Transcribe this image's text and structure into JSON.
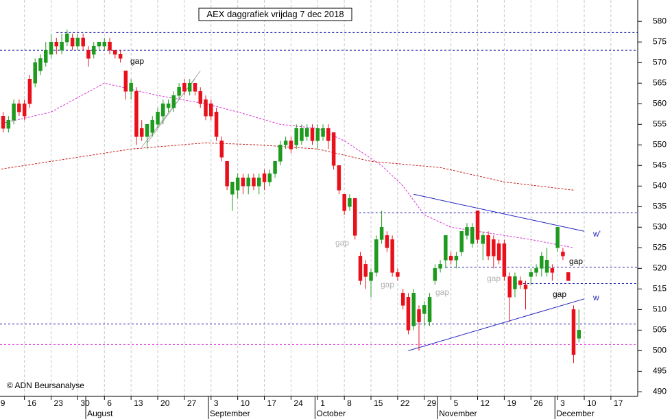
{
  "chart_data": {
    "type": "candlestick",
    "title": "AEX daggrafiek vrijdag 7 dec 2018",
    "copyright": "© ADN Beursanalyse",
    "up_color": "#1e9a1e",
    "down_color": "#e8101a",
    "grid": true,
    "x": [
      "2018-07-09",
      "2018-07-10",
      "2018-07-11",
      "2018-07-12",
      "2018-07-13",
      "2018-07-16",
      "2018-07-17",
      "2018-07-18",
      "2018-07-19",
      "2018-07-20",
      "2018-07-23",
      "2018-07-24",
      "2018-07-25",
      "2018-07-26",
      "2018-07-27",
      "2018-07-30",
      "2018-07-31",
      "2018-08-01",
      "2018-08-02",
      "2018-08-03",
      "2018-08-06",
      "2018-08-07",
      "2018-08-08",
      "2018-08-09",
      "2018-08-10",
      "2018-08-13",
      "2018-08-14",
      "2018-08-15",
      "2018-08-16",
      "2018-08-17",
      "2018-08-20",
      "2018-08-21",
      "2018-08-22",
      "2018-08-23",
      "2018-08-24",
      "2018-08-27",
      "2018-08-28",
      "2018-08-29",
      "2018-08-30",
      "2018-08-31",
      "2018-09-03",
      "2018-09-04",
      "2018-09-05",
      "2018-09-06",
      "2018-09-07",
      "2018-09-10",
      "2018-09-11",
      "2018-09-12",
      "2018-09-13",
      "2018-09-14",
      "2018-09-17",
      "2018-09-18",
      "2018-09-19",
      "2018-09-20",
      "2018-09-21",
      "2018-09-24",
      "2018-09-25",
      "2018-09-26",
      "2018-09-27",
      "2018-09-28",
      "2018-10-01",
      "2018-10-02",
      "2018-10-03",
      "2018-10-04",
      "2018-10-05",
      "2018-10-08",
      "2018-10-09",
      "2018-10-10",
      "2018-10-11",
      "2018-10-12",
      "2018-10-15",
      "2018-10-16",
      "2018-10-17",
      "2018-10-18",
      "2018-10-19",
      "2018-10-22",
      "2018-10-23",
      "2018-10-24",
      "2018-10-25",
      "2018-10-26",
      "2018-10-29",
      "2018-10-30",
      "2018-10-31",
      "2018-11-01",
      "2018-11-02",
      "2018-11-05",
      "2018-11-06",
      "2018-11-07",
      "2018-11-08",
      "2018-11-09",
      "2018-11-12",
      "2018-11-13",
      "2018-11-14",
      "2018-11-15",
      "2018-11-16",
      "2018-11-19",
      "2018-11-20",
      "2018-11-21",
      "2018-11-22",
      "2018-11-23",
      "2018-11-26",
      "2018-11-27",
      "2018-11-28",
      "2018-11-29",
      "2018-11-30",
      "2018-12-03",
      "2018-12-04",
      "2018-12-05",
      "2018-12-06",
      "2018-12-07"
    ],
    "open": [
      557,
      557,
      554,
      556,
      560,
      560,
      566,
      565,
      568,
      570,
      572,
      575,
      573,
      575,
      576,
      574,
      576,
      573,
      572,
      574,
      574,
      575,
      573,
      572,
      568,
      563,
      563,
      554,
      552,
      553,
      555,
      557,
      559,
      559,
      562,
      565,
      563,
      565,
      563,
      561,
      560,
      558,
      551,
      546,
      538,
      539,
      542,
      540,
      542,
      540,
      543,
      541,
      543,
      546,
      550,
      551,
      550,
      551,
      552,
      554,
      551,
      552,
      554,
      553,
      545,
      538,
      535,
      537,
      523,
      521,
      517,
      519,
      527,
      528,
      527,
      519,
      514,
      513,
      506,
      510,
      509,
      507,
      517,
      520,
      522,
      523,
      522,
      524,
      528,
      526,
      534,
      526,
      528,
      527,
      526,
      526,
      518,
      515,
      517,
      516,
      518,
      519,
      520,
      519,
      520,
      525,
      524,
      519,
      510,
      503
    ],
    "high": [
      561,
      558,
      557,
      561,
      561,
      561,
      567,
      571,
      572,
      575,
      577,
      576,
      577,
      578,
      577,
      577,
      577,
      574,
      575,
      575,
      576,
      576,
      573,
      573,
      568,
      566,
      564,
      556,
      555,
      557,
      559,
      561,
      561,
      563,
      565,
      566,
      566,
      565,
      564,
      562,
      561,
      559,
      552,
      546,
      541,
      543,
      543,
      543,
      543,
      543,
      544,
      544,
      546,
      551,
      552,
      552,
      555,
      555,
      555,
      555,
      555,
      555,
      555,
      553,
      545,
      538,
      538,
      537,
      524,
      522,
      520,
      528,
      534,
      529,
      528,
      520,
      515,
      514,
      515,
      511,
      512,
      514,
      521,
      522,
      528,
      524,
      524,
      529,
      531,
      531,
      534,
      529,
      529,
      528,
      527,
      527,
      519,
      519,
      518,
      517,
      520,
      521,
      524,
      525,
      521,
      530,
      525,
      519,
      511,
      510
    ],
    "low": [
      556,
      553,
      553,
      555,
      557,
      556,
      559,
      564,
      567,
      569,
      571,
      572,
      572,
      574,
      573,
      573,
      573,
      569,
      571,
      573,
      573,
      572,
      571,
      570,
      561,
      561,
      550,
      551,
      549,
      552,
      554,
      555,
      558,
      558,
      561,
      562,
      562,
      562,
      559,
      556,
      556,
      551,
      546,
      539,
      534,
      537,
      538,
      538,
      539,
      538,
      539,
      540,
      542,
      545,
      549,
      548,
      549,
      550,
      551,
      550,
      549,
      551,
      549,
      544,
      538,
      533,
      534,
      527,
      516,
      515,
      513,
      518,
      526,
      524,
      518,
      517,
      510,
      504,
      505,
      500,
      506,
      506,
      516,
      519,
      520,
      521,
      520,
      523,
      527,
      525,
      526,
      522,
      522,
      520,
      521,
      517,
      507,
      513,
      515,
      510,
      516,
      518,
      518,
      518,
      517,
      524,
      522,
      517,
      497,
      502
    ],
    "close": [
      560,
      554,
      556,
      560,
      558,
      557,
      560,
      570,
      571,
      573,
      575,
      574,
      575,
      577,
      574,
      576,
      574,
      571,
      574,
      575,
      575,
      573,
      572,
      571,
      563,
      565,
      552,
      552,
      555,
      556,
      558,
      560,
      560,
      562,
      564,
      563,
      565,
      563,
      560,
      557,
      557,
      552,
      547,
      540,
      541,
      542,
      540,
      542,
      540,
      542,
      541,
      543,
      546,
      550,
      551,
      549,
      554,
      554,
      554,
      551,
      554,
      554,
      551,
      545,
      539,
      534,
      537,
      528,
      517,
      518,
      519,
      527,
      530,
      525,
      519,
      518,
      511,
      505,
      514,
      507,
      511,
      513,
      520,
      521,
      528,
      522,
      523,
      529,
      530,
      530,
      527,
      528,
      523,
      523,
      522,
      518,
      513,
      518,
      516,
      515,
      519,
      520,
      523,
      522,
      519,
      530,
      523,
      517,
      499,
      505
    ],
    "xlim": [
      "2018-07-06",
      "2018-12-21"
    ],
    "ylim": [
      488.9,
      585.2
    ],
    "yticks": [
      490,
      495,
      500,
      505,
      510,
      515,
      520,
      525,
      530,
      535,
      540,
      545,
      550,
      555,
      560,
      565,
      570,
      575,
      580
    ],
    "xticks": [
      {
        "value": "2018-07-09",
        "label": "9"
      },
      {
        "value": "2018-07-16",
        "label": "16"
      },
      {
        "value": "2018-07-23",
        "label": "23"
      },
      {
        "value": "2018-07-30",
        "label": "30"
      },
      {
        "value": "2018-08-06",
        "label": "6"
      },
      {
        "value": "2018-08-13",
        "label": "13"
      },
      {
        "value": "2018-08-20",
        "label": "20"
      },
      {
        "value": "2018-08-27",
        "label": "27"
      },
      {
        "value": "2018-09-03",
        "label": "3"
      },
      {
        "value": "2018-09-10",
        "label": "10"
      },
      {
        "value": "2018-09-17",
        "label": "17"
      },
      {
        "value": "2018-09-24",
        "label": "24"
      },
      {
        "value": "2018-10-01",
        "label": "1"
      },
      {
        "value": "2018-10-08",
        "label": "8"
      },
      {
        "value": "2018-10-15",
        "label": "15"
      },
      {
        "value": "2018-10-22",
        "label": "22"
      },
      {
        "value": "2018-10-29",
        "label": "29"
      },
      {
        "value": "2018-11-05",
        "label": "5"
      },
      {
        "value": "2018-11-12",
        "label": "12"
      },
      {
        "value": "2018-11-19",
        "label": "19"
      },
      {
        "value": "2018-11-26",
        "label": "26"
      },
      {
        "value": "2018-12-03",
        "label": "3"
      },
      {
        "value": "2018-12-10",
        "label": "10"
      },
      {
        "value": "2018-12-17",
        "label": "17"
      }
    ],
    "month_ticks": [
      {
        "value": "2018-08-01",
        "label": "August"
      },
      {
        "value": "2018-09-03",
        "label": "September"
      },
      {
        "value": "2018-10-01",
        "label": "October"
      },
      {
        "value": "2018-11-01",
        "label": "November"
      },
      {
        "value": "2018-12-03",
        "label": "December"
      }
    ],
    "moving_averages": [
      {
        "color": "#d633d6",
        "x": [
          "2018-07-09",
          "2018-07-23",
          "2018-08-06",
          "2018-08-20",
          "2018-08-31",
          "2018-09-10",
          "2018-09-20",
          "2018-10-01",
          "2018-10-08",
          "2018-10-17",
          "2018-10-23",
          "2018-10-29",
          "2018-11-05",
          "2018-11-12",
          "2018-11-19",
          "2018-11-26",
          "2018-12-06"
        ],
        "values": [
          555,
          558,
          565,
          562,
          560,
          558,
          555,
          554,
          551,
          545,
          540,
          533,
          530,
          529,
          528,
          527,
          525
        ]
      },
      {
        "color": "#c82020",
        "x": [
          "2018-07-09",
          "2018-07-23",
          "2018-08-13",
          "2018-08-31",
          "2018-09-14",
          "2018-10-01",
          "2018-10-15",
          "2018-11-01",
          "2018-11-19",
          "2018-12-06"
        ],
        "values": [
          544,
          546,
          549,
          550.5,
          550,
          549,
          546,
          544.5,
          541,
          539
        ]
      }
    ],
    "hlines": [
      {
        "value": 577.3,
        "color": "#1a1aa8",
        "from": "2018-07-24"
      },
      {
        "value": 573,
        "color": "#1a1aa8"
      },
      {
        "value": 533.5,
        "color": "#1a1aa8",
        "from": "2018-10-10"
      },
      {
        "value": 520.3,
        "color": "#1a1aa8",
        "from": "2018-11-02"
      },
      {
        "value": 516.3,
        "color": "#1a1aa8",
        "from": "2018-11-21"
      },
      {
        "value": 506.5,
        "color": "#1a1aa8"
      },
      {
        "value": 501.5,
        "color": "#d633d6"
      }
    ],
    "trendlines": [
      {
        "color": "#2020c0",
        "x": [
          "2018-10-25",
          "2018-12-10"
        ],
        "values": [
          538,
          529
        ]
      },
      {
        "color": "#2020c0",
        "x": [
          "2018-10-24",
          "2018-12-10"
        ],
        "values": [
          500,
          512.6
        ]
      },
      {
        "color": "#aaaaaa",
        "x": [
          "2018-08-15",
          "2018-08-29"
        ],
        "values": [
          549.5,
          566
        ]
      },
      {
        "color": "#aaaaaa",
        "x": [
          "2018-08-16",
          "2018-08-30"
        ],
        "values": [
          550.5,
          568
        ]
      }
    ],
    "annotations": [
      {
        "text": "gap",
        "color": "#000000"
      },
      {
        "text": "gap",
        "color": "#b0b0b0"
      },
      {
        "text": "gap",
        "color": "#b0b0b0"
      },
      {
        "text": "gap",
        "color": "#b0b0b0"
      },
      {
        "text": "gap",
        "color": "#b0b0b0"
      },
      {
        "text": "gap",
        "color": "#000000"
      },
      {
        "text": "gap",
        "color": "#000000"
      },
      {
        "text": "w'",
        "color": "#2020c0"
      },
      {
        "text": "w",
        "color": "#2020c0"
      }
    ]
  }
}
